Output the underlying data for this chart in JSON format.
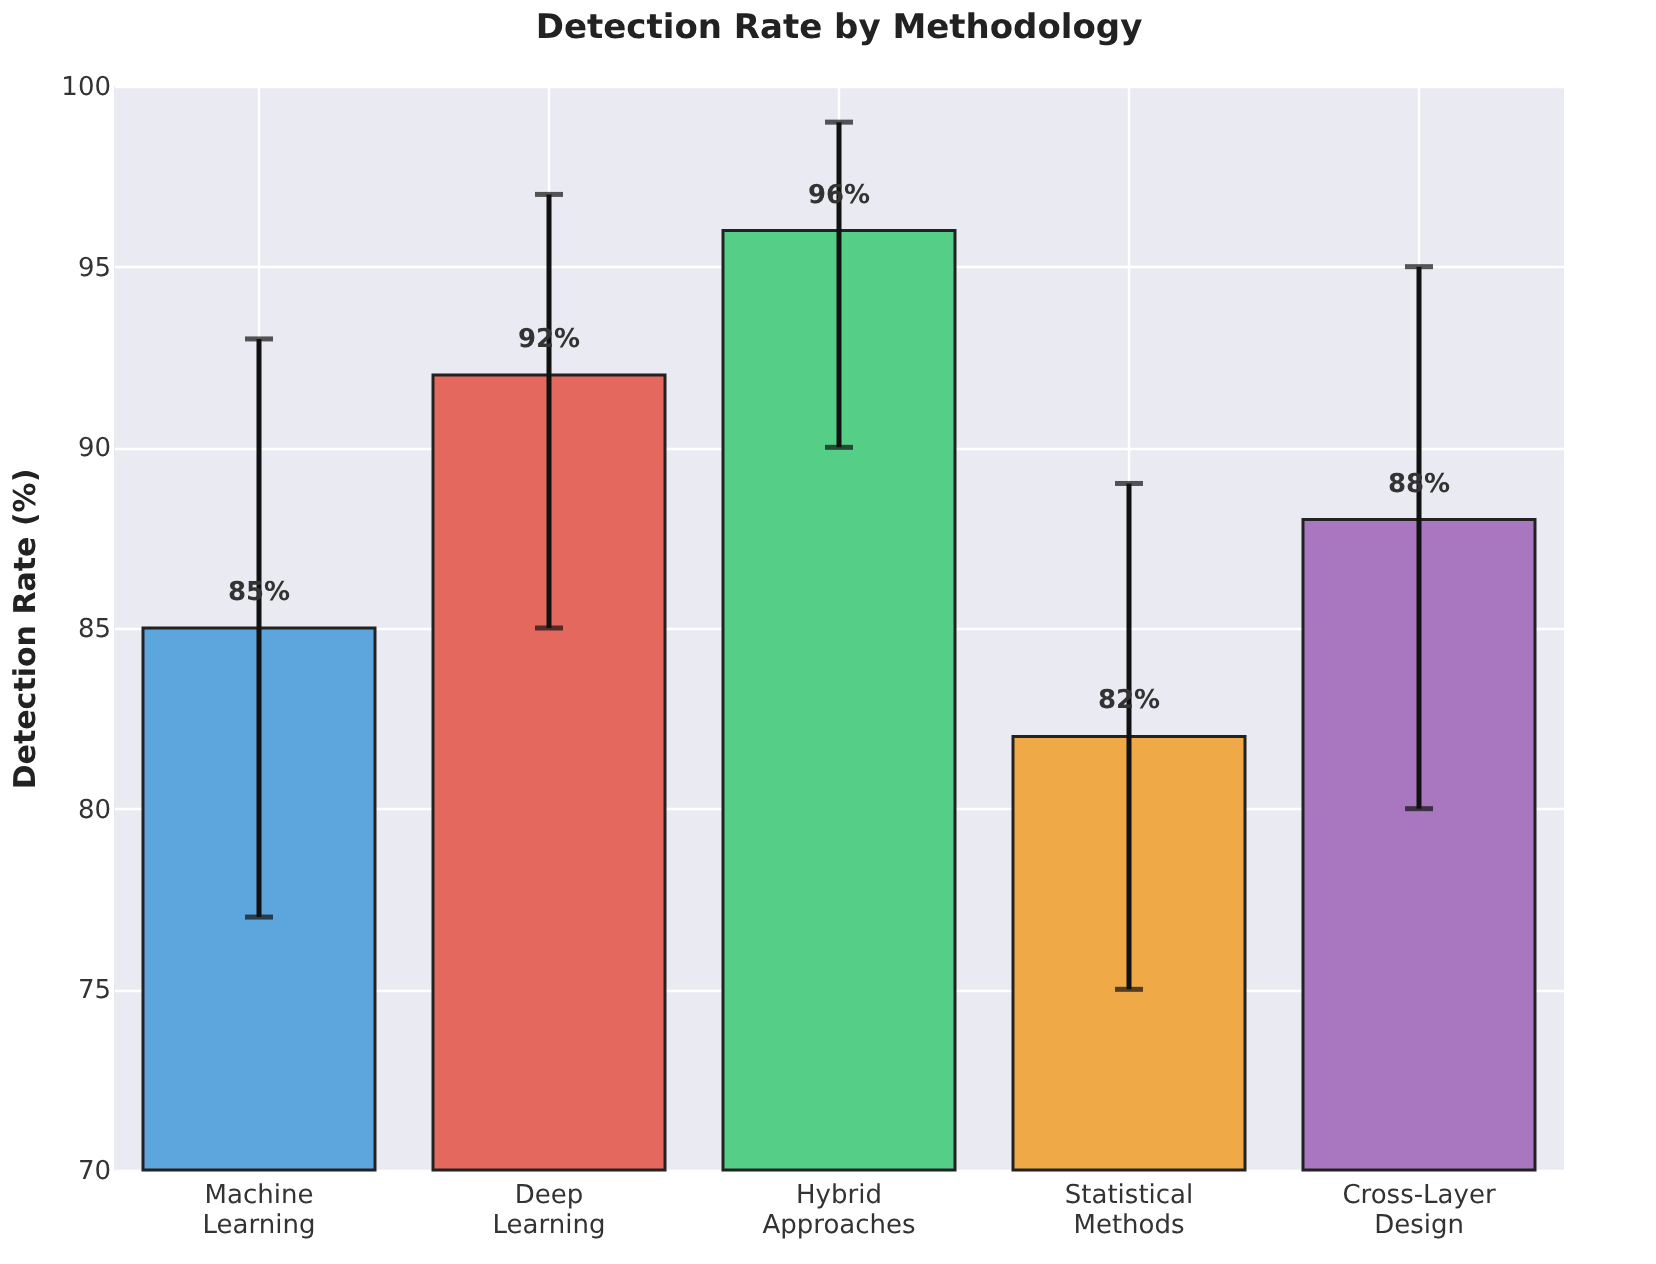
{
  "chart_data": {
    "type": "bar",
    "title": "Detection Rate by Methodology",
    "ylabel": "Detection Rate (%)",
    "categories": [
      "Machine\nLearning",
      "Deep\nLearning",
      "Hybrid\nApproaches",
      "Statistical\nMethods",
      "Cross-Layer\nDesign"
    ],
    "values": [
      85,
      92,
      96,
      82,
      88
    ],
    "colors": [
      "#5da5dd",
      "#e5685e",
      "#55cf88",
      "#efa947",
      "#a977c0"
    ],
    "errors": [
      [
        77,
        93
      ],
      [
        85,
        97
      ],
      [
        90,
        99
      ],
      [
        75,
        89
      ],
      [
        80,
        95
      ]
    ],
    "value_labels": [
      "85%",
      "92%",
      "96%",
      "82%",
      "88%"
    ],
    "ylim": [
      70,
      100
    ],
    "yticks": [
      70,
      75,
      80,
      85,
      90,
      95,
      100
    ],
    "grid": true
  }
}
